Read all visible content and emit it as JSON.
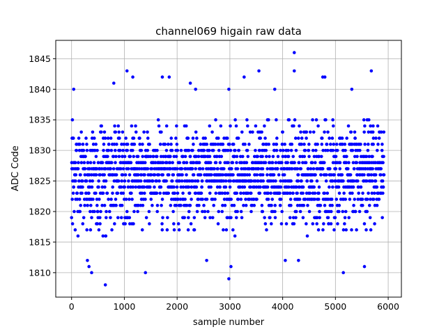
{
  "chart_data": {
    "type": "scatter",
    "title": "channel069 higain raw data",
    "xlabel": "sample number",
    "ylabel": "ADC Code",
    "xlim": [
      -300,
      6250
    ],
    "ylim": [
      1806,
      1848
    ],
    "xticks": [
      0,
      1000,
      2000,
      3000,
      4000,
      5000,
      6000
    ],
    "yticks": [
      1810,
      1815,
      1820,
      1825,
      1830,
      1835,
      1840,
      1845
    ],
    "grid": true,
    "marker_color": "#0000ff",
    "series": [
      {
        "num_samples": 6000,
        "x_range": [
          0,
          5920
        ],
        "typical_range": [
          1816,
          1835
        ],
        "center": 1826,
        "outliers": [
          {
            "x": 40,
            "y": 1840
          },
          {
            "x": 300,
            "y": 1812
          },
          {
            "x": 330,
            "y": 1811
          },
          {
            "x": 380,
            "y": 1810
          },
          {
            "x": 640,
            "y": 1808
          },
          {
            "x": 800,
            "y": 1841
          },
          {
            "x": 1050,
            "y": 1843
          },
          {
            "x": 1160,
            "y": 1842
          },
          {
            "x": 1400,
            "y": 1810
          },
          {
            "x": 1720,
            "y": 1842
          },
          {
            "x": 1850,
            "y": 1842
          },
          {
            "x": 2250,
            "y": 1841
          },
          {
            "x": 2350,
            "y": 1840
          },
          {
            "x": 2560,
            "y": 1812
          },
          {
            "x": 2980,
            "y": 1840
          },
          {
            "x": 2980,
            "y": 1809
          },
          {
            "x": 3020,
            "y": 1811
          },
          {
            "x": 3270,
            "y": 1842
          },
          {
            "x": 3550,
            "y": 1843
          },
          {
            "x": 3850,
            "y": 1840
          },
          {
            "x": 4050,
            "y": 1812
          },
          {
            "x": 4220,
            "y": 1846
          },
          {
            "x": 4220,
            "y": 1843
          },
          {
            "x": 4300,
            "y": 1812
          },
          {
            "x": 4760,
            "y": 1842
          },
          {
            "x": 4800,
            "y": 1842
          },
          {
            "x": 5150,
            "y": 1810
          },
          {
            "x": 5310,
            "y": 1840
          },
          {
            "x": 5550,
            "y": 1811
          },
          {
            "x": 5680,
            "y": 1843
          }
        ]
      }
    ]
  }
}
